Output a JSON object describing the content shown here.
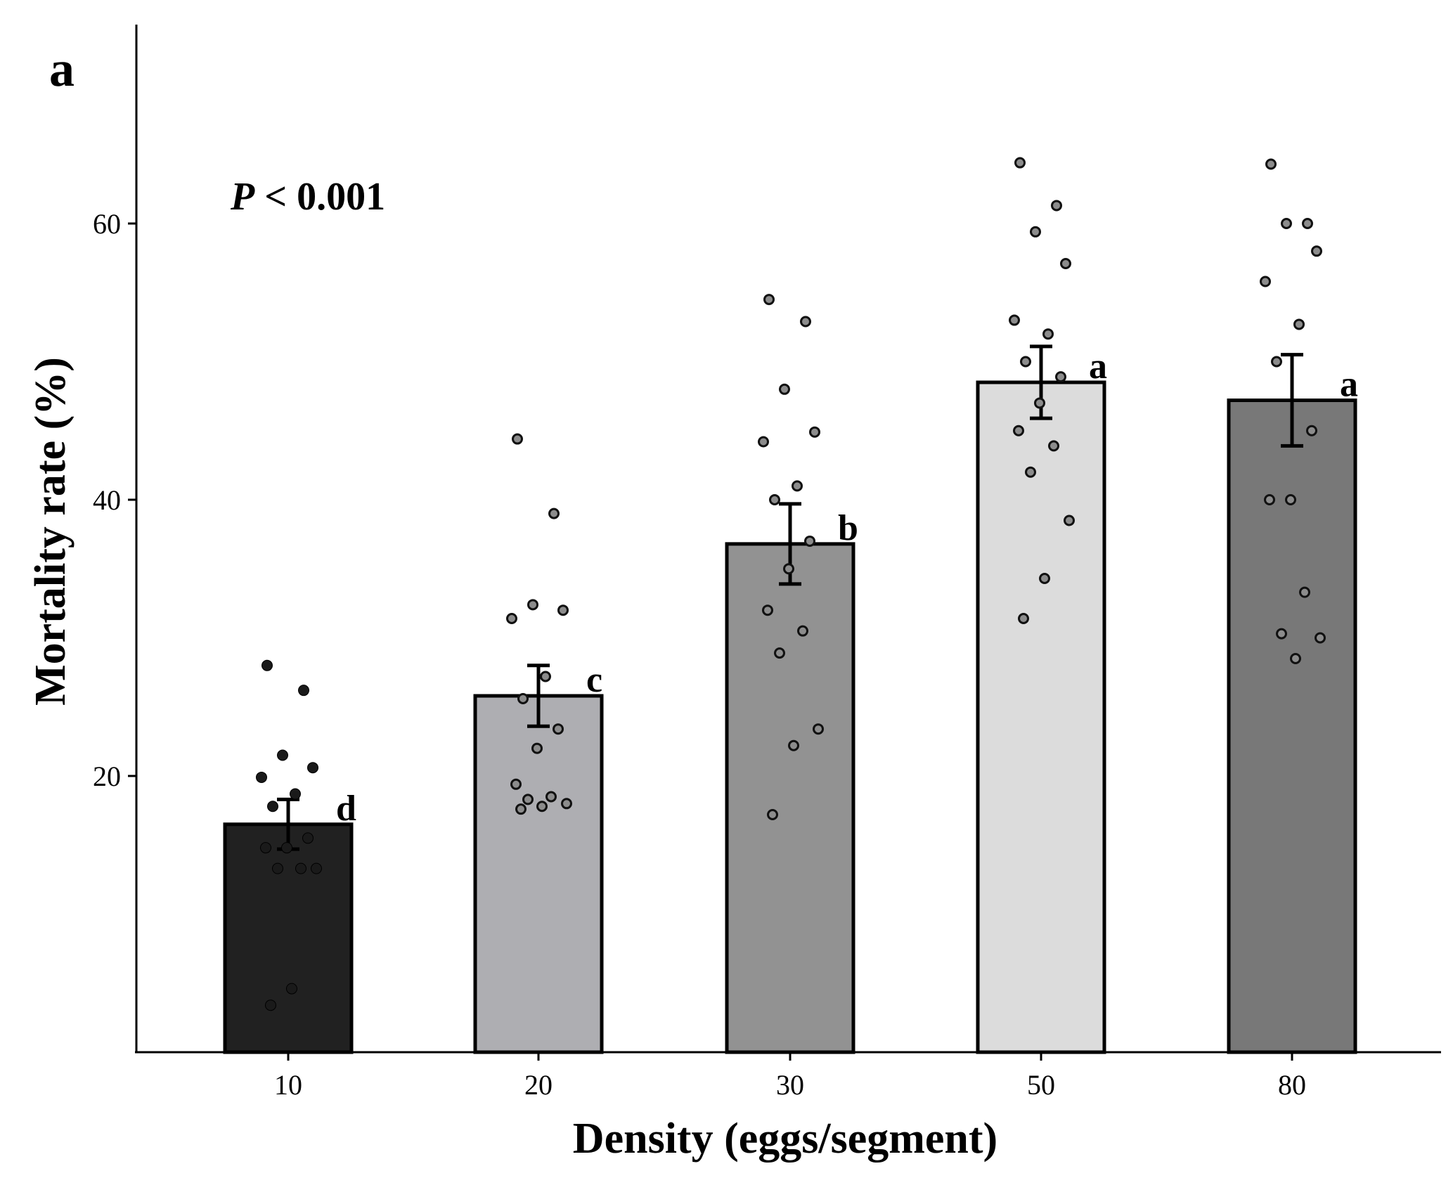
{
  "panel_label": "a",
  "chart_data": {
    "type": "bar",
    "categories": [
      "10",
      "20",
      "30",
      "50",
      "80"
    ],
    "values": [
      16.5,
      25.8,
      36.8,
      48.5,
      47.2
    ],
    "errors": [
      1.8,
      2.2,
      2.9,
      2.6,
      3.3
    ],
    "significance_letters": [
      "d",
      "c",
      "b",
      "a",
      "a"
    ],
    "bar_colors": [
      "#212121",
      "#aeaeb2",
      "#929292",
      "#dcdcdc",
      "#787878"
    ],
    "points": [
      [
        28,
        26.2,
        21.5,
        20.6,
        19.9,
        18.7,
        17.8,
        15.5,
        14.8,
        14.8,
        13.3,
        13.3,
        13.3,
        4.6,
        3.4
      ],
      [
        44.4,
        39,
        32.4,
        32,
        31.4,
        27.2,
        25.6,
        23.4,
        22,
        19.4,
        18.5,
        18.3,
        18,
        17.8,
        17.6
      ],
      [
        54.5,
        52.9,
        48,
        44.9,
        44.2,
        41,
        40,
        37,
        35,
        32,
        30.5,
        28.9,
        23.4,
        22.2,
        17.2
      ],
      [
        64.4,
        61.3,
        59.4,
        57.1,
        53,
        52,
        50,
        48.9,
        47,
        45,
        43.9,
        42,
        38.5,
        34.3,
        31.4
      ],
      [
        64.3,
        60,
        60,
        58,
        55.8,
        52.7,
        50,
        45,
        40,
        40,
        33.3,
        30.3,
        30,
        28.5
      ]
    ],
    "xlabel": "Density (eggs/segment)",
    "ylabel": "Mortality rate (%)",
    "ylim": [
      0,
      75
    ],
    "yticks": [
      20,
      40,
      60
    ],
    "annotation_prefix": "P",
    "annotation_rest": " < 0.001"
  }
}
